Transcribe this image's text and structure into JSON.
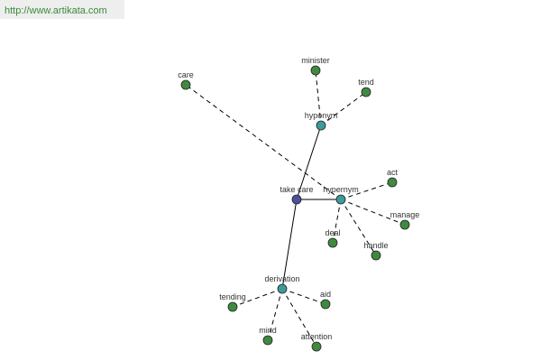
{
  "header": {
    "url": "http://www.artikata.com"
  },
  "nodes": [
    {
      "label": "take care"
    },
    {
      "label": "hyponym"
    },
    {
      "label": "hypernym"
    },
    {
      "label": "derivation"
    },
    {
      "label": "minister"
    },
    {
      "label": "tend"
    },
    {
      "label": "care"
    },
    {
      "label": "act"
    },
    {
      "label": "manage"
    },
    {
      "label": "deal"
    },
    {
      "label": "handle"
    },
    {
      "label": "tending"
    },
    {
      "label": "aid"
    },
    {
      "label": "mind"
    },
    {
      "label": "attention"
    }
  ]
}
